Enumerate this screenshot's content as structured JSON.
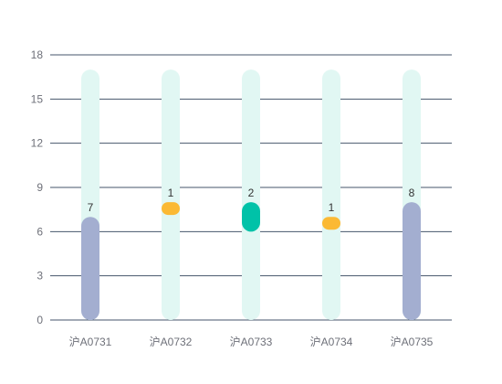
{
  "chart_data": {
    "type": "bar",
    "categories": [
      "沪A0731",
      "沪A0732",
      "沪A0733",
      "沪A0734",
      "沪A0735"
    ],
    "ylim": [
      0,
      18
    ],
    "yticks": [
      0,
      3,
      6,
      9,
      12,
      15,
      18
    ],
    "background_max": 17,
    "grid": true,
    "segments": [
      {
        "category": "沪A0731",
        "start": 0,
        "end": 7,
        "label": "7",
        "color": "#a3aed0"
      },
      {
        "category": "沪A0732",
        "start": 7.2,
        "end": 8.0,
        "label": "1",
        "color": "#fbb934"
      },
      {
        "category": "沪A0733",
        "start": 6.0,
        "end": 8.0,
        "label": "2",
        "color": "#00c2a8"
      },
      {
        "category": "沪A0734",
        "start": 6.2,
        "end": 7.0,
        "label": "1",
        "color": "#fbb934"
      },
      {
        "category": "沪A0735",
        "start": 0,
        "end": 8,
        "label": "8",
        "color": "#a3aed0"
      }
    ],
    "colors": {
      "background_bar": "#e1f7f3",
      "grid": "#46566b",
      "axis_text": "#6e7079",
      "label_text": "#333333"
    }
  }
}
